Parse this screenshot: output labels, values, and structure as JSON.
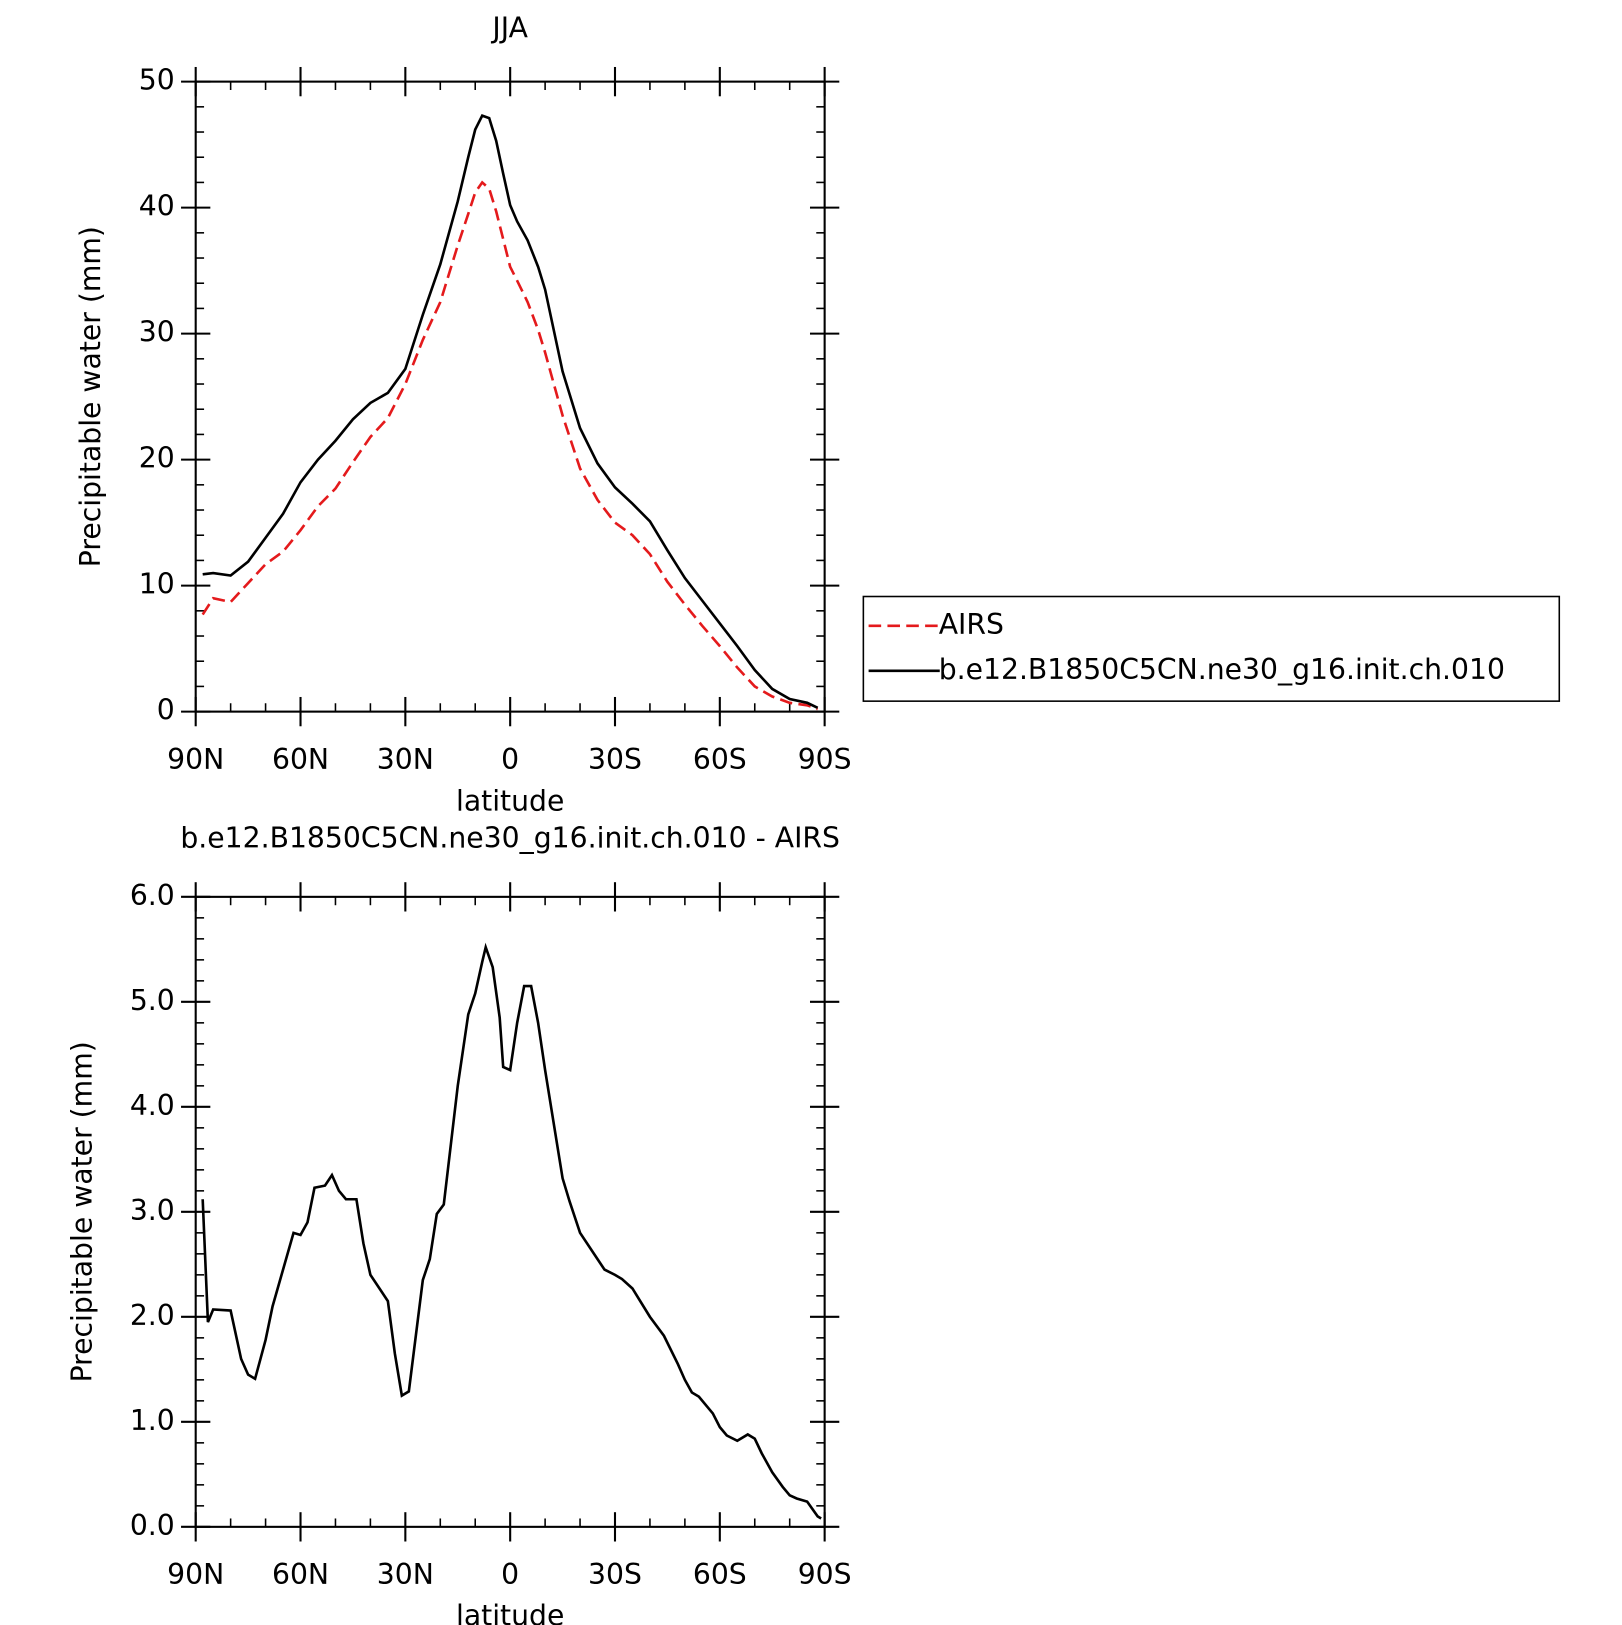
{
  "chart_data": [
    {
      "type": "line",
      "title": "JJA",
      "xlabel": "latitude",
      "ylabel": "Precipitable water (mm)",
      "x": [
        88,
        85,
        80,
        75,
        70,
        65,
        60,
        55,
        50,
        45,
        40,
        35,
        30,
        25,
        20,
        15,
        12,
        10,
        8,
        6,
        4,
        2,
        0,
        -2,
        -5,
        -8,
        -10,
        -15,
        -20,
        -25,
        -30,
        -35,
        -40,
        -45,
        -50,
        -55,
        -60,
        -65,
        -70,
        -75,
        -80,
        -85,
        -88
      ],
      "series": [
        {
          "name": "AIRS",
          "color": "#e41a1c",
          "line_style": "dashed",
          "values": [
            7.7,
            9.0,
            8.7,
            10.2,
            11.7,
            12.7,
            14.4,
            16.3,
            17.7,
            19.8,
            21.8,
            23.3,
            26.0,
            29.5,
            32.5,
            37.0,
            39.5,
            41.2,
            42.0,
            41.5,
            39.7,
            37.5,
            35.3,
            34.2,
            32.5,
            30.3,
            28.5,
            23.5,
            19.3,
            16.8,
            15.0,
            14.0,
            12.5,
            10.3,
            8.5,
            6.8,
            5.2,
            3.5,
            2.0,
            1.2,
            0.7,
            0.5,
            0.2
          ]
        },
        {
          "name": "b.e12.B1850C5CN.ne30_g16.init.ch.010",
          "color": "#000000",
          "line_style": "solid",
          "values": [
            10.9,
            11.0,
            10.8,
            11.9,
            13.8,
            15.7,
            18.2,
            20.0,
            21.5,
            23.2,
            24.5,
            25.3,
            27.2,
            31.5,
            35.5,
            40.5,
            44.0,
            46.2,
            47.3,
            47.1,
            45.3,
            42.7,
            40.2,
            38.9,
            37.4,
            35.3,
            33.5,
            27.0,
            22.5,
            19.7,
            17.8,
            16.5,
            15.1,
            12.8,
            10.6,
            8.8,
            7.0,
            5.2,
            3.3,
            1.8,
            1.0,
            0.7,
            0.3
          ]
        }
      ],
      "xlim": [
        90,
        -90
      ],
      "xticks": [
        {
          "value": 90,
          "label": "90N"
        },
        {
          "value": 60,
          "label": "60N"
        },
        {
          "value": 30,
          "label": "30N"
        },
        0,
        {
          "value": -30,
          "label": "30S"
        },
        {
          "value": -60,
          "label": "60S"
        },
        {
          "value": -90,
          "label": "90S"
        }
      ],
      "ylim": [
        0,
        50
      ],
      "yticks": [
        0,
        10,
        20,
        30,
        40,
        50
      ],
      "legend": "right"
    },
    {
      "type": "line",
      "title": "b.e12.B1850C5CN.ne30_g16.init.ch.010 - AIRS",
      "xlabel": "latitude",
      "ylabel": "Precipitable water (mm)",
      "x": [
        88,
        86.5,
        85,
        80,
        77,
        75,
        73,
        70,
        68,
        65,
        62,
        60,
        58,
        56,
        53,
        51,
        49,
        47,
        44,
        42,
        40,
        35,
        33,
        31,
        29,
        25,
        23,
        21,
        19,
        15,
        12,
        10,
        8,
        7,
        5,
        3,
        2,
        0,
        -2,
        -4,
        -6,
        -8,
        -10,
        -15,
        -17,
        -20,
        -25,
        -27,
        -30,
        -32,
        -35,
        -40,
        -44,
        -48,
        -50,
        -52,
        -54,
        -58,
        -60,
        -62,
        -65,
        -68,
        -70,
        -72,
        -75,
        -78,
        -80,
        -82,
        -85,
        -88,
        -89
      ],
      "series": [
        {
          "color": "#000000",
          "line_style": "solid",
          "values": [
            3.12,
            1.95,
            2.07,
            2.06,
            1.6,
            1.45,
            1.41,
            1.78,
            2.1,
            2.45,
            2.8,
            2.78,
            2.9,
            3.23,
            3.25,
            3.35,
            3.2,
            3.12,
            3.12,
            2.7,
            2.4,
            2.15,
            1.65,
            1.25,
            1.29,
            2.35,
            2.55,
            2.98,
            3.07,
            4.2,
            4.88,
            5.08,
            5.38,
            5.52,
            5.33,
            4.85,
            4.38,
            4.35,
            4.8,
            5.15,
            5.15,
            4.8,
            4.35,
            3.32,
            3.1,
            2.8,
            2.55,
            2.45,
            2.4,
            2.36,
            2.27,
            2.0,
            1.82,
            1.55,
            1.4,
            1.28,
            1.24,
            1.08,
            0.95,
            0.87,
            0.82,
            0.88,
            0.84,
            0.7,
            0.52,
            0.38,
            0.3,
            0.27,
            0.24,
            0.1,
            0.08
          ]
        }
      ],
      "xlim": [
        90,
        -90
      ],
      "xticks": [
        {
          "value": 90,
          "label": "90N"
        },
        {
          "value": 60,
          "label": "60N"
        },
        {
          "value": 30,
          "label": "30N"
        },
        0,
        {
          "value": -30,
          "label": "30S"
        },
        {
          "value": -60,
          "label": "60S"
        },
        {
          "value": -90,
          "label": "90S"
        }
      ],
      "ylim": [
        0,
        6
      ],
      "yticks": [
        {
          "value": 0,
          "label": "0.0"
        },
        {
          "value": 1,
          "label": "1.0"
        },
        {
          "value": 2,
          "label": "2.0"
        },
        {
          "value": 3,
          "label": "3.0"
        },
        {
          "value": 4,
          "label": "4.0"
        },
        {
          "value": 5,
          "label": "5.0"
        },
        {
          "value": 6,
          "label": "6.0"
        }
      ]
    }
  ]
}
